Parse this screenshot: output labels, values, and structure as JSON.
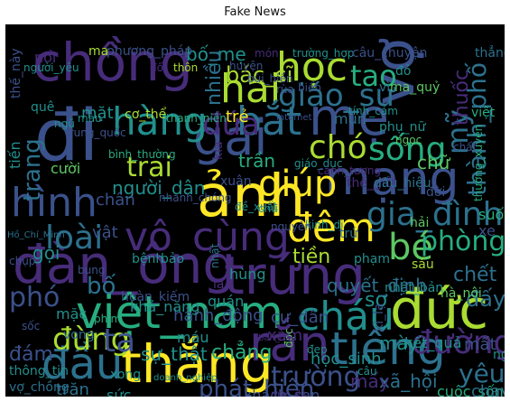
{
  "title": "Fake News",
  "background": "#000000",
  "palette": [
    "#440154",
    "#472c7a",
    "#3b518b",
    "#2c718e",
    "#21908d",
    "#27ad81",
    "#5cc863",
    "#aadc32",
    "#fde725"
  ],
  "words": [
    {
      "text": "chồng",
      "color": "#472c7a"
    },
    {
      "text": "đi",
      "color": "#3b518b"
    },
    {
      "text": "ảnh",
      "color": "#fde725"
    },
    {
      "text": "học",
      "color": "#aadc32"
    },
    {
      "text": "vợ",
      "color": "#3b518b"
    },
    {
      "text": "mẹ",
      "color": "#3b518b"
    },
    {
      "text": "hai",
      "color": "#aadc32"
    },
    {
      "text": "giáo_sư",
      "color": "#2c718e"
    },
    {
      "text": "gái",
      "color": "#3b518b"
    },
    {
      "text": "bắt",
      "color": "#2c718e"
    },
    {
      "text": "hàng",
      "color": "#21908d"
    },
    {
      "text": "mạng",
      "color": "#3b518b"
    },
    {
      "text": "hình",
      "color": "#3b518b"
    },
    {
      "text": "giúp",
      "color": "#fde725"
    },
    {
      "text": "chó",
      "color": "#aadc32"
    },
    {
      "text": "sống",
      "color": "#27ad81"
    },
    {
      "text": "đàn_ông",
      "color": "#472c7a"
    },
    {
      "text": "việt_nam",
      "color": "#27ad81"
    },
    {
      "text": "trứng",
      "color": "#472c7a"
    },
    {
      "text": "đức",
      "color": "#aadc32"
    },
    {
      "text": "thắng",
      "color": "#fde725"
    },
    {
      "text": "rắn",
      "color": "#472c7a"
    },
    {
      "text": "tiếng",
      "color": "#2c718e"
    },
    {
      "text": "đầu",
      "color": "#2c718e"
    },
    {
      "text": "cháu",
      "color": "#21908d"
    },
    {
      "text": "đêm",
      "color": "#fde725"
    },
    {
      "text": "trai",
      "color": "#aadc32"
    },
    {
      "text": "vô_cùng",
      "color": "#472c7a"
    },
    {
      "text": "gia_đình",
      "color": "#2c718e"
    },
    {
      "text": "bé",
      "color": "#5cc863"
    },
    {
      "text": "loài",
      "color": "#2c718e"
    },
    {
      "text": "phó",
      "color": "#3b518b"
    },
    {
      "text": "đừng",
      "color": "#aadc32"
    },
    {
      "text": "ta",
      "color": "#3b518b"
    },
    {
      "text": "đường",
      "color": "#472c7a"
    },
    {
      "text": "trường",
      "color": "#3b518b"
    },
    {
      "text": "yêu",
      "color": "#2c718e"
    },
    {
      "text": "phát_hiện",
      "color": "#3b518b"
    },
    {
      "text": "phòng",
      "color": "#27ad81"
    },
    {
      "text": "thành_phố",
      "color": "#2c718e"
    },
    {
      "text": "tao",
      "color": "#27ad81"
    },
    {
      "text": "bác_sĩ",
      "color": "#aadc32"
    },
    {
      "text": "đứa",
      "color": "#472c7a"
    },
    {
      "text": "trang",
      "color": "#2c718e"
    },
    {
      "text": "mỹ",
      "color": "#2c718e"
    },
    {
      "text": "bố_mẹ",
      "color": "#21908d"
    },
    {
      "text": "nhiều",
      "color": "#2c718e"
    },
    {
      "text": "thuốc",
      "color": "#472c7a"
    },
    {
      "text": "tiền",
      "color": "#aadc32"
    },
    {
      "text": "bố",
      "color": "#2c718e"
    },
    {
      "text": "gọi",
      "color": "#21908d"
    },
    {
      "text": "mặt",
      "color": "#21908d"
    },
    {
      "text": "người_dân",
      "color": "#21908d"
    },
    {
      "text": "trần",
      "color": "#27ad81"
    },
    {
      "text": "chữ",
      "color": "#5cc863"
    },
    {
      "text": "chết",
      "color": "#2c718e"
    },
    {
      "text": "đấy",
      "color": "#2c718e"
    },
    {
      "text": "mày",
      "color": "#21908d"
    },
    {
      "text": "sợ",
      "color": "#21908d"
    },
    {
      "text": "chẳng",
      "color": "#27ad81"
    },
    {
      "text": "cư_dân",
      "color": "#3b518b"
    },
    {
      "text": "xăm",
      "color": "#472c7a"
    },
    {
      "text": "sự_thật",
      "color": "#21908d"
    },
    {
      "text": "hùng",
      "color": "#21908d"
    },
    {
      "text": "quán",
      "color": "#21908d"
    },
    {
      "text": "máu",
      "color": "#21908d"
    },
    {
      "text": "hành_động",
      "color": "#3b518b"
    },
    {
      "text": "mặc",
      "color": "#21908d"
    },
    {
      "text": "đám",
      "color": "#3b518b"
    },
    {
      "text": "cuộc_sống",
      "color": "#27ad81"
    },
    {
      "text": "xã_hội",
      "color": "#2c718e"
    },
    {
      "text": "mấy",
      "color": "#472c7a"
    },
    {
      "text": "chân",
      "color": "#3b518b"
    },
    {
      "text": "vật",
      "color": "#3b518b"
    },
    {
      "text": "suốt",
      "color": "#27ad81"
    },
    {
      "text": "xe",
      "color": "#3b518b"
    },
    {
      "text": "trẻ",
      "color": "#fde725"
    },
    {
      "text": "mụn",
      "color": "#2c718e"
    },
    {
      "text": "hải",
      "color": "#5cc863"
    },
    {
      "text": "nhật_bản",
      "color": "#21908d"
    },
    {
      "text": "quyết_định",
      "color": "#2c718e"
    },
    {
      "text": "kết_quả",
      "color": "#21908d"
    },
    {
      "text": "học_sinh",
      "color": "#21908d"
    },
    {
      "text": "kinh_dị",
      "color": "#21908d"
    },
    {
      "text": "nhanh_chóng",
      "color": "#3b518b"
    },
    {
      "text": "bình_thường",
      "color": "#27ad81"
    },
    {
      "text": "trung_quốc",
      "color": "#3b518b"
    },
    {
      "text": "thanh_niên",
      "color": "#27ad81"
    },
    {
      "text": "cơ_thể",
      "color": "#aadc32"
    },
    {
      "text": "hà_nội",
      "color": "#5cc863"
    },
    {
      "text": "khách_sạn",
      "color": "#3b518b"
    },
    {
      "text": "hoàn_kiếm",
      "color": "#3b518b"
    },
    {
      "text": "phạm",
      "color": "#21908d"
    },
    {
      "text": "vợ_chồng",
      "color": "#2c718e"
    },
    {
      "text": "thông_tin",
      "color": "#21908d"
    },
    {
      "text": "xong",
      "color": "#21908d"
    },
    {
      "text": "sức",
      "color": "#21908d"
    },
    {
      "text": "trăn",
      "color": "#2c718e"
    },
    {
      "text": "cười",
      "color": "#5cc863"
    },
    {
      "text": "chụp",
      "color": "#3b518b"
    },
    {
      "text": "bung",
      "color": "#3b518b"
    },
    {
      "text": "phim",
      "color": "#27ad81"
    },
    {
      "text": "vong",
      "color": "#2c718e"
    },
    {
      "text": "sốc",
      "color": "#3b518b"
    },
    {
      "text": "chay",
      "color": "#2c718e"
    },
    {
      "text": "mất",
      "color": "#3b518b"
    },
    {
      "text": "ngủ",
      "color": "#21908d"
    },
    {
      "text": "kì_lạ",
      "color": "#3b518b"
    },
    {
      "text": "đẹp",
      "color": "#21908d"
    },
    {
      "text": "câu",
      "color": "#21908d"
    },
    {
      "text": "đọc",
      "color": "#5cc863"
    },
    {
      "text": "khả_năng",
      "color": "#21908d"
    },
    {
      "text": "la",
      "color": "#472c7a"
    },
    {
      "text": "bệnh",
      "color": "#21908d"
    },
    {
      "text": "bảo",
      "color": "#21908d"
    },
    {
      "text": "đời",
      "color": "#3b518b"
    },
    {
      "text": "tính_cảm",
      "color": "#21908d"
    },
    {
      "text": "đỏ",
      "color": "#21908d"
    },
    {
      "text": "ma",
      "color": "#aadc32"
    },
    {
      "text": "món",
      "color": "#472c7a"
    },
    {
      "text": "nổi",
      "color": "#472c7a"
    },
    {
      "text": "phương_pháp",
      "color": "#3b518b"
    },
    {
      "text": "trường_hợp",
      "color": "#21908d"
    },
    {
      "text": "câu_chuyện",
      "color": "#3b518b"
    },
    {
      "text": "thẳng",
      "color": "#2c718e"
    },
    {
      "text": "thế_này",
      "color": "#3b518b"
    },
    {
      "text": "người_yêu",
      "color": "#21908d"
    },
    {
      "text": "đối",
      "color": "#472c7a"
    },
    {
      "text": "thôn",
      "color": "#aadc32"
    },
    {
      "text": "huyện",
      "color": "#3b518b"
    },
    {
      "text": "bùi_hiền",
      "color": "#3b518b"
    },
    {
      "text": "rùa",
      "color": "#3b518b"
    },
    {
      "text": "biển",
      "color": "#3b518b"
    },
    {
      "text": "vì",
      "color": "#2c718e"
    },
    {
      "text": "ma_quỷ",
      "color": "#5cc863"
    },
    {
      "text": "quê",
      "color": "#21908d"
    },
    {
      "text": "màu",
      "color": "#21908d"
    },
    {
      "text": "ngũ",
      "color": "#21908d"
    },
    {
      "text": "việt",
      "color": "#27ad81"
    },
    {
      "text": "internet",
      "color": "#3b518b"
    },
    {
      "text": "phụ_nữ",
      "color": "#21908d"
    },
    {
      "text": "ngọc",
      "color": "#5cc863"
    },
    {
      "text": "chất",
      "color": "#3b518b"
    },
    {
      "text": "tiến",
      "color": "#21908d"
    },
    {
      "text": "giáo_dục",
      "color": "#21908d"
    },
    {
      "text": "xuân",
      "color": "#3b518b"
    },
    {
      "text": "cảnh_tượng",
      "color": "#472c7a"
    },
    {
      "text": "thế_giới",
      "color": "#472c7a"
    },
    {
      "text": "dấu_hiệu",
      "color": "#2c718e"
    },
    {
      "text": "thường_xuyên",
      "color": "#27ad81"
    },
    {
      "text": "đề_xuất",
      "color": "#21908d"
    },
    {
      "text": "chủ",
      "color": "#21908d"
    },
    {
      "text": "nguyên",
      "color": "#3b518b"
    },
    {
      "text": "trứ",
      "color": "#2c718e"
    },
    {
      "text": "Hồ_Chí_Minh",
      "color": "#2c718e"
    },
    {
      "text": "nhật",
      "color": "#2c718e"
    },
    {
      "text": "kia",
      "color": "#472c7a"
    },
    {
      "text": "bàn_đầu",
      "color": "#472c7a"
    },
    {
      "text": "doanh_nghiệp",
      "color": "#21908d"
    },
    {
      "text": "mắc_đú",
      "color": "#472c7a"
    },
    {
      "text": "sáu",
      "color": "#aadc32"
    }
  ]
}
